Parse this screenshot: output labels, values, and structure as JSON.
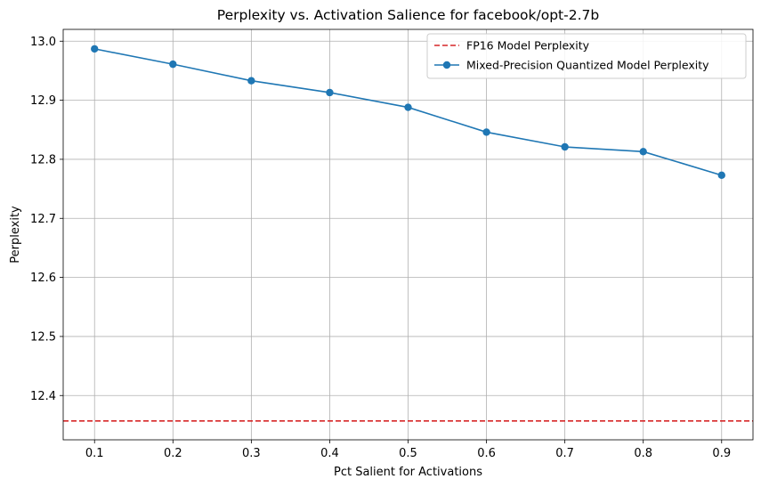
{
  "chart_data": {
    "type": "line",
    "title": "Perplexity vs. Activation Salience for facebook/opt-2.7b",
    "xlabel": "Pct Salient for Activations",
    "ylabel": "Perplexity",
    "xlim": [
      0.06,
      0.94
    ],
    "ylim": [
      12.325,
      13.02
    ],
    "x_ticks": [
      "0.1",
      "0.2",
      "0.3",
      "0.4",
      "0.5",
      "0.6",
      "0.7",
      "0.8",
      "0.9"
    ],
    "y_ticks": [
      "12.4",
      "12.5",
      "12.6",
      "12.7",
      "12.8",
      "12.9",
      "13.0"
    ],
    "grid": true,
    "legend_position": "upper right",
    "series": [
      {
        "name": "FP16 Model Perplexity",
        "style": "dashed-hline",
        "color": "#d62728",
        "y": 12.357
      },
      {
        "name": "Mixed-Precision Quantized Model Perplexity",
        "style": "line-markers",
        "color": "#1f77b4",
        "x": [
          0.1,
          0.2,
          0.3,
          0.4,
          0.5,
          0.6,
          0.7,
          0.8,
          0.9
        ],
        "y": [
          12.987,
          12.961,
          12.933,
          12.913,
          12.888,
          12.846,
          12.821,
          12.813,
          12.773
        ]
      }
    ]
  }
}
